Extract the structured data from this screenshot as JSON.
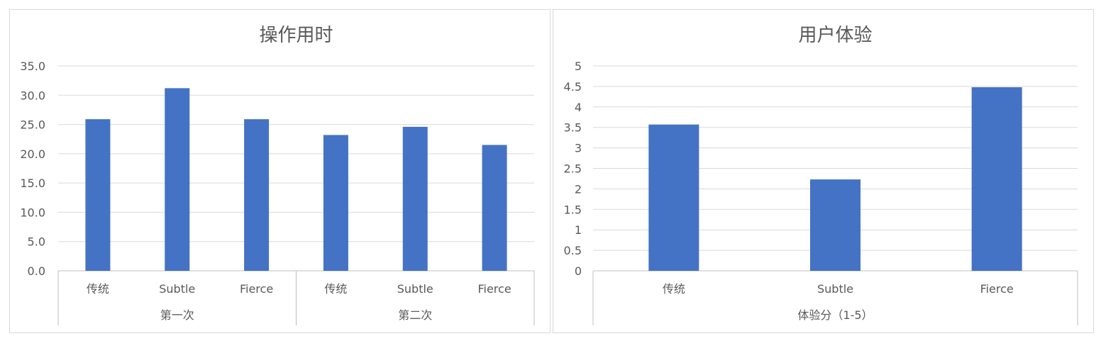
{
  "chart_data": [
    {
      "type": "bar",
      "title": "操作用时",
      "groups": [
        {
          "label": "第一次",
          "categories": [
            "传统",
            "Subtle",
            "Fierce"
          ],
          "values": [
            25.9,
            31.2,
            25.9
          ]
        },
        {
          "label": "第二次",
          "categories": [
            "传统",
            "Subtle",
            "Fierce"
          ],
          "values": [
            23.2,
            24.6,
            21.5
          ]
        }
      ],
      "ylim": [
        0,
        35
      ],
      "yticks": [
        "0.0",
        "5.0",
        "10.0",
        "15.0",
        "20.0",
        "25.0",
        "30.0",
        "35.0"
      ],
      "ytick_step": 5,
      "grid": true,
      "bar_color": "#4472C4"
    },
    {
      "type": "bar",
      "title": "用户体验",
      "groups": [
        {
          "label": "体验分（1-5）",
          "categories": [
            "传统",
            "Subtle",
            "Fierce"
          ],
          "values": [
            3.57,
            2.23,
            4.48
          ]
        }
      ],
      "ylim": [
        0,
        5
      ],
      "yticks": [
        "0",
        "0.5",
        "1",
        "1.5",
        "2",
        "2.5",
        "3",
        "3.5",
        "4",
        "4.5",
        "5"
      ],
      "ytick_step": 0.5,
      "grid": true,
      "bar_color": "#4472C4"
    }
  ]
}
